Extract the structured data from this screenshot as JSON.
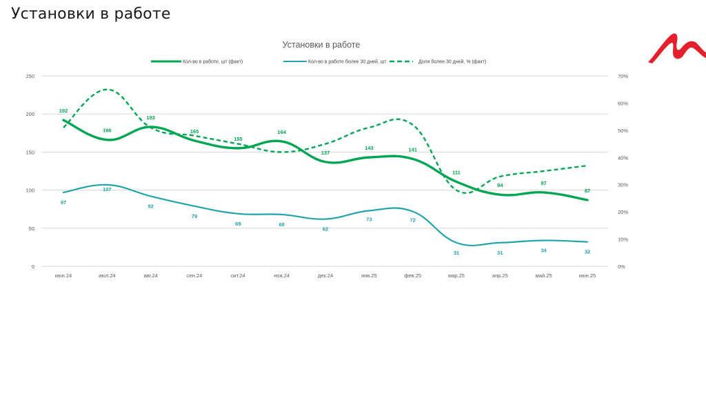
{
  "slide": {
    "title": "Установки в работе"
  },
  "logo": {
    "name": "brand-logo",
    "color": "#e3202b"
  },
  "colors": {
    "green": "#00a651",
    "teal": "#1fa3ad",
    "grid": "#d9d9d9",
    "axis_text": "#595959"
  },
  "chart_data": {
    "type": "line",
    "title": "Установки в работе",
    "categories": [
      "июн.24",
      "июл.24",
      "авг.24",
      "сен.24",
      "окт.24",
      "ноя.24",
      "дек.24",
      "янв.25",
      "фев.25",
      "мар.25",
      "апр.25",
      "май.25",
      "июн.25"
    ],
    "y_left": {
      "min": 0,
      "max": 250,
      "ticks": [
        "0",
        "50",
        "100",
        "150",
        "200",
        "250"
      ],
      "tick_values": [
        0,
        50,
        100,
        150,
        200,
        250
      ]
    },
    "y_right": {
      "min": 0,
      "max": 70,
      "ticks": [
        "0%",
        "10%",
        "20%",
        "30%",
        "40%",
        "50%",
        "60%",
        "70%"
      ],
      "tick_values": [
        0,
        10,
        20,
        30,
        40,
        50,
        60,
        70
      ]
    },
    "grid": true,
    "legend_position": "top",
    "series": [
      {
        "name": "Кол-во в работе, шт (факт)",
        "axis": "left",
        "style": "solid-thick",
        "color": "#00a651",
        "values": [
          192,
          166,
          183,
          165,
          155,
          164,
          137,
          143,
          141,
          111,
          94,
          97,
          87
        ],
        "labels": [
          "192",
          "166",
          "183",
          "165",
          "155",
          "164",
          "137",
          "143",
          "141",
          "111",
          "94",
          "97",
          "87"
        ]
      },
      {
        "name": "Кол-во в работе более 30 дней, шт",
        "axis": "left",
        "style": "solid-thin",
        "color": "#1fa3ad",
        "values": [
          97,
          107,
          92,
          79,
          69,
          68,
          62,
          73,
          72,
          31,
          31,
          34,
          32
        ],
        "labels": [
          "97",
          "107",
          "92",
          "79",
          "69",
          "68",
          "62",
          "73",
          "72",
          "31",
          "31",
          "34",
          "32"
        ]
      },
      {
        "name": "Доля более 30 дней, % (факт)",
        "axis": "right",
        "style": "dashed",
        "color": "#00a651",
        "values": [
          51,
          65,
          51,
          48,
          45,
          42,
          45,
          51,
          52,
          28,
          33,
          35,
          37
        ]
      }
    ]
  }
}
